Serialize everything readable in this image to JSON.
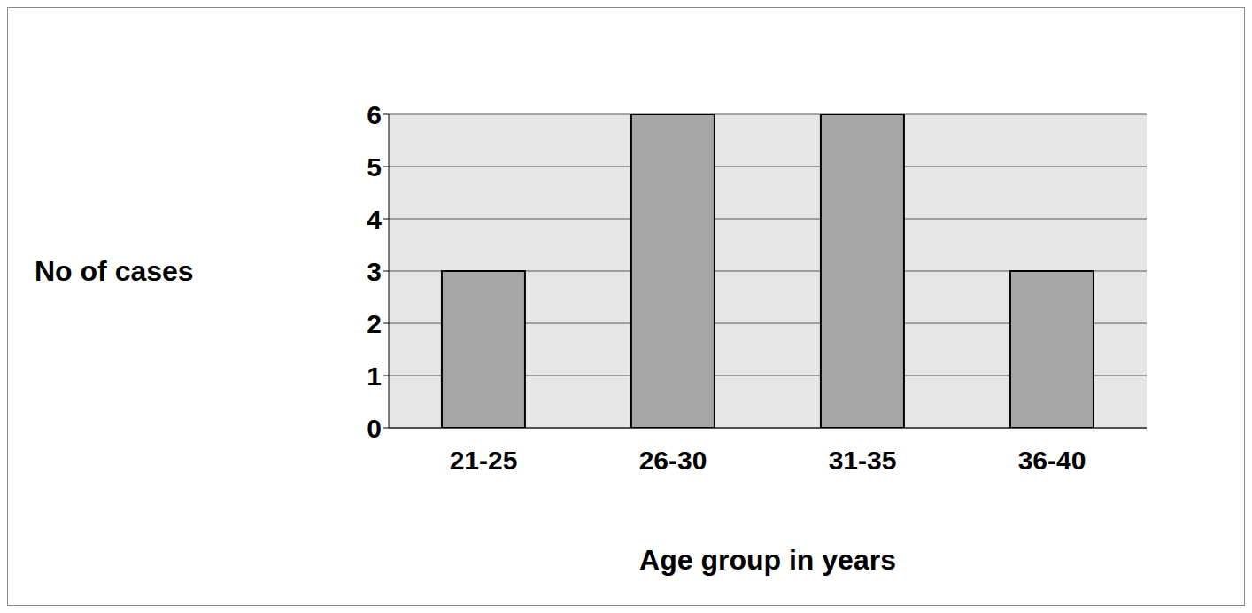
{
  "chart_data": {
    "type": "bar",
    "categories": [
      "21-25",
      "26-30",
      "31-35",
      "36-40"
    ],
    "values": [
      3,
      6,
      6,
      3
    ],
    "color": "#a6a6a6",
    "xlabel": "Age group in years",
    "ylabel": "No of cases",
    "ylim": [
      0,
      6
    ],
    "yticks": [
      0,
      1,
      2,
      3,
      4,
      5,
      6
    ],
    "grid": true
  }
}
